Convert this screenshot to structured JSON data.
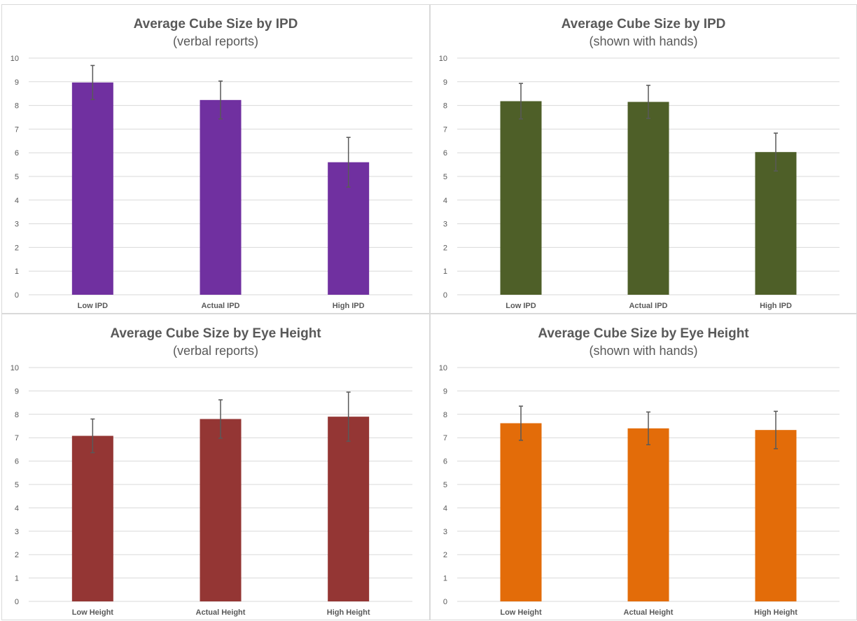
{
  "colors": {
    "gridline": "#d9d9d9",
    "axis_text": "#595959",
    "error_bar": "#595959",
    "panel_border": "#d9d9d9"
  },
  "chart_data": [
    {
      "type": "bar",
      "title": "Average Cube Size by IPD",
      "subtitle": "(verbal reports)",
      "categories": [
        "Low IPD",
        "Actual IPD",
        "High IPD"
      ],
      "values": [
        8.97,
        8.23,
        5.6
      ],
      "error": [
        0.72,
        0.8,
        1.05
      ],
      "color": "#7030a0",
      "ylim": [
        0,
        10
      ],
      "yticks": [
        "0",
        "1",
        "2",
        "3",
        "4",
        "5",
        "6",
        "7",
        "8",
        "9",
        "10"
      ],
      "grid": true,
      "legend": "none"
    },
    {
      "type": "bar",
      "title": "Average Cube Size by IPD",
      "subtitle": "(shown with hands)",
      "categories": [
        "Low IPD",
        "Actual IPD",
        "High IPD"
      ],
      "values": [
        8.18,
        8.15,
        6.03
      ],
      "error": [
        0.75,
        0.7,
        0.8
      ],
      "color": "#4e5f28",
      "ylim": [
        0,
        10
      ],
      "yticks": [
        "0",
        "1",
        "2",
        "3",
        "4",
        "5",
        "6",
        "7",
        "8",
        "9",
        "10"
      ],
      "grid": true,
      "legend": "none"
    },
    {
      "type": "bar",
      "title": "Average Cube Size by Eye Height",
      "subtitle": "(verbal reports)",
      "categories": [
        "Low Height",
        "Actual Height",
        "High Height"
      ],
      "values": [
        7.08,
        7.8,
        7.9
      ],
      "error": [
        0.72,
        0.82,
        1.05
      ],
      "color": "#943634",
      "ylim": [
        0,
        10
      ],
      "yticks": [
        "0",
        "1",
        "2",
        "3",
        "4",
        "5",
        "6",
        "7",
        "8",
        "9",
        "10"
      ],
      "grid": true,
      "legend": "none"
    },
    {
      "type": "bar",
      "title": "Average Cube Size by Eye Height",
      "subtitle": "(shown with hands)",
      "categories": [
        "Low Height",
        "Actual Height",
        "High Height"
      ],
      "values": [
        7.62,
        7.4,
        7.33
      ],
      "error": [
        0.73,
        0.7,
        0.8
      ],
      "color": "#e36c09",
      "ylim": [
        0,
        10
      ],
      "yticks": [
        "0",
        "1",
        "2",
        "3",
        "4",
        "5",
        "6",
        "7",
        "8",
        "9",
        "10"
      ],
      "grid": true,
      "legend": "none"
    }
  ]
}
